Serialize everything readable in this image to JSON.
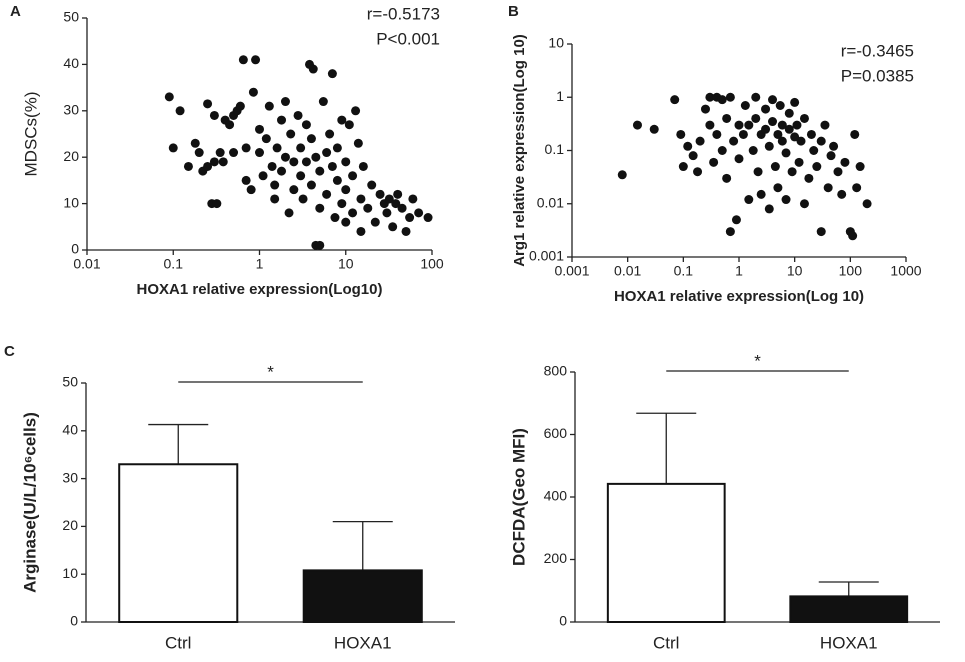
{
  "chart_data": [
    {
      "type": "scatter",
      "panel_label": "A",
      "xlabel": "HOXA1 relative expression(Log10)",
      "ylabel": "MDSCs(%)",
      "annotations": [
        "r=-0.5173",
        "P<0.001"
      ],
      "xlog": true,
      "color": "#111111",
      "xlim": [
        0.01,
        100
      ],
      "xticks": [
        0.01,
        0.1,
        1,
        10,
        100
      ],
      "ylim": [
        0,
        50
      ],
      "yticks": [
        0,
        10,
        20,
        30,
        40,
        50
      ],
      "x": [
        0.09,
        0.1,
        0.12,
        0.15,
        0.18,
        0.2,
        0.22,
        0.25,
        0.25,
        0.28,
        0.3,
        0.3,
        0.32,
        0.35,
        0.38,
        0.4,
        0.45,
        0.5,
        0.5,
        0.55,
        0.6,
        0.65,
        0.7,
        0.7,
        0.8,
        0.85,
        0.9,
        1,
        1,
        1.1,
        1.2,
        1.3,
        1.4,
        1.5,
        1.5,
        1.6,
        1.8,
        1.8,
        2,
        2,
        2.2,
        2.3,
        2.5,
        2.5,
        2.8,
        3,
        3,
        3.2,
        3.5,
        3.5,
        3.8,
        4,
        4,
        4.2,
        4.5,
        4.5,
        5,
        5,
        5,
        5.5,
        6,
        6,
        6.5,
        7,
        7,
        7.5,
        8,
        8,
        9,
        9,
        10,
        10,
        10,
        11,
        12,
        12,
        13,
        14,
        15,
        15,
        16,
        18,
        20,
        22,
        25,
        28,
        30,
        32,
        35,
        38,
        40,
        45,
        50,
        55,
        60,
        70,
        90
      ],
      "values": [
        33,
        22,
        30,
        18,
        23,
        21,
        17,
        31.5,
        18,
        10,
        19,
        29,
        10,
        21,
        19,
        28,
        27,
        29,
        21,
        30,
        31,
        41,
        22,
        15,
        13,
        34,
        41,
        26,
        21,
        16,
        24,
        31,
        18,
        11,
        14,
        22,
        28,
        17,
        20,
        32,
        8,
        25,
        13,
        19,
        29,
        22,
        16,
        11,
        27,
        19,
        40,
        14,
        24,
        39,
        1,
        20,
        1,
        17,
        9,
        32,
        21,
        12,
        25,
        18,
        38,
        7,
        15,
        22,
        28,
        10,
        19,
        13,
        6,
        27,
        16,
        8,
        30,
        23,
        4,
        11,
        18,
        9,
        14,
        6,
        12,
        10,
        8,
        11,
        5,
        10,
        12,
        9,
        4,
        7,
        11,
        8,
        7
      ]
    },
    {
      "type": "scatter",
      "panel_label": "B",
      "xlabel": "HOXA1 relative expression(Log 10)",
      "ylabel": "Arg1 relative expression(Log 10)",
      "annotations": [
        "r=-0.3465",
        "P=0.0385"
      ],
      "xlog": true,
      "ylog": true,
      "color": "#111111",
      "xlim": [
        0.001,
        1000
      ],
      "xticks": [
        0.001,
        0.01,
        0.1,
        1,
        10,
        100,
        1000
      ],
      "ylim": [
        0.001,
        10
      ],
      "yticks": [
        0.001,
        0.01,
        0.1,
        1,
        10
      ],
      "x": [
        0.008,
        0.015,
        0.03,
        0.07,
        0.09,
        0.1,
        0.12,
        0.15,
        0.18,
        0.2,
        0.25,
        0.3,
        0.3,
        0.35,
        0.4,
        0.4,
        0.5,
        0.5,
        0.6,
        0.6,
        0.7,
        0.7,
        0.8,
        0.9,
        1,
        1,
        1.2,
        1.3,
        1.5,
        1.5,
        1.8,
        2,
        2,
        2.2,
        2.5,
        2.5,
        3,
        3,
        3.5,
        3.5,
        4,
        4,
        4.5,
        5,
        5,
        5.5,
        6,
        6,
        7,
        7,
        8,
        8,
        9,
        10,
        10,
        11,
        12,
        13,
        15,
        15,
        18,
        20,
        22,
        25,
        30,
        30,
        35,
        40,
        45,
        50,
        60,
        70,
        80,
        100,
        110,
        120,
        130,
        150,
        200
      ],
      "values": [
        0.035,
        0.3,
        0.25,
        0.9,
        0.2,
        0.05,
        0.12,
        0.08,
        0.04,
        0.15,
        0.6,
        1,
        0.3,
        0.06,
        1,
        0.2,
        0.9,
        0.1,
        0.03,
        0.4,
        0.003,
        1,
        0.15,
        0.005,
        0.3,
        0.07,
        0.2,
        0.7,
        0.012,
        0.3,
        0.1,
        1,
        0.4,
        0.04,
        0.2,
        0.015,
        0.6,
        0.25,
        0.008,
        0.12,
        0.9,
        0.35,
        0.05,
        0.2,
        0.02,
        0.7,
        0.15,
        0.3,
        0.09,
        0.012,
        0.5,
        0.25,
        0.04,
        0.18,
        0.8,
        0.3,
        0.06,
        0.15,
        0.01,
        0.4,
        0.03,
        0.2,
        0.1,
        0.05,
        0.15,
        0.003,
        0.3,
        0.02,
        0.08,
        0.12,
        0.04,
        0.015,
        0.06,
        0.003,
        0.0025,
        0.2,
        0.02,
        0.05,
        0.01
      ]
    },
    {
      "type": "bar",
      "panel_label": "C",
      "ylabel": "Arginase(U/L/10⁶cells)",
      "annotation": "*",
      "categories": [
        "Ctrl",
        "HOXA1"
      ],
      "values": [
        33,
        10.8
      ],
      "errors": [
        8.3,
        10.2
      ],
      "colors": [
        "#ffffff",
        "#111111"
      ],
      "ylim": [
        0,
        50
      ],
      "yticks": [
        0,
        10,
        20,
        30,
        40,
        50
      ]
    },
    {
      "type": "bar",
      "ylabel": "DCFDA(Geo MFI)",
      "annotation": "*",
      "categories": [
        "Ctrl",
        "HOXA1"
      ],
      "values": [
        442,
        82
      ],
      "errors": [
        226,
        46
      ],
      "colors": [
        "#ffffff",
        "#111111"
      ],
      "ylim": [
        0,
        800
      ],
      "yticks": [
        0,
        200,
        400,
        600,
        800
      ]
    }
  ]
}
